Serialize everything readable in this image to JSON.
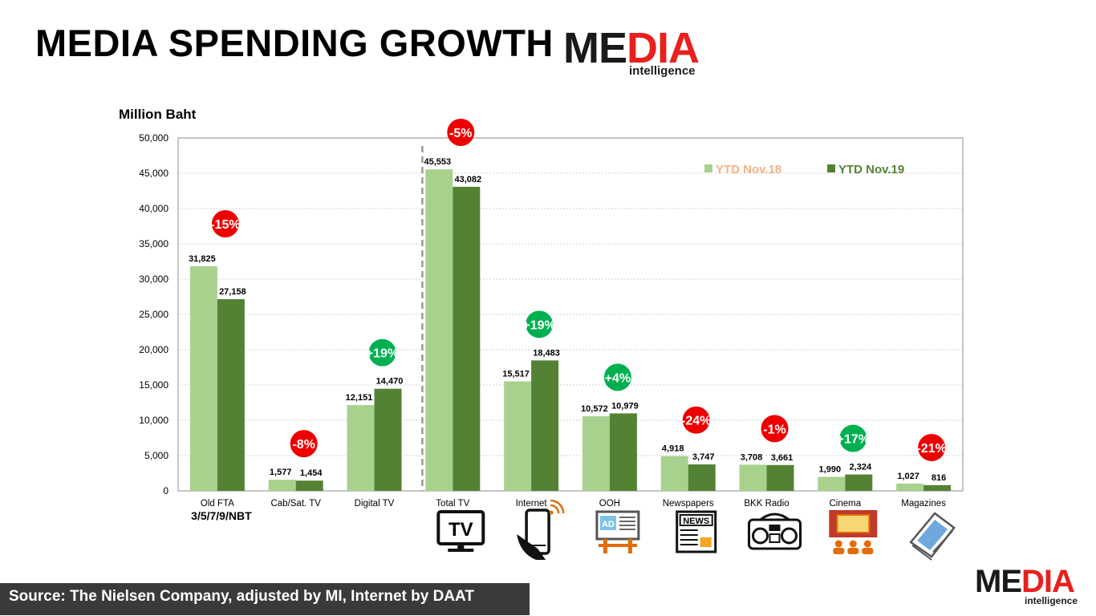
{
  "header": {
    "title": "MEDIA SPENDING GROWTH",
    "logo_word_dark": "ME",
    "logo_word_red": "DIA",
    "logo_sub": "intelligence"
  },
  "footer": {
    "source": "Source: The Nielsen Company, adjusted by MI, Internet by DAAT"
  },
  "colors": {
    "series_2018": "#a9d18e",
    "series_2019": "#548235",
    "legend_2018_text": "#f4b183",
    "legend_2019_text": "#548235",
    "badge_negative": "#ee0000",
    "badge_positive": "#00b050",
    "logo_red": "#e8201e"
  },
  "chart_data": {
    "type": "bar",
    "ylabel": "Million Baht",
    "ylim": [
      0,
      50000
    ],
    "yticks": [
      "0",
      "5,000",
      "10,000",
      "15,000",
      "20,000",
      "25,000",
      "30,000",
      "35,000",
      "40,000",
      "45,000",
      "50,000"
    ],
    "categories": [
      "Old FTA",
      "Cab/Sat. TV",
      "Digital TV",
      "Total TV",
      "Internet",
      "OOH",
      "Newspapers",
      "BKK Radio",
      "Cinema",
      "Magazines"
    ],
    "category_note": {
      "category": "Old FTA",
      "text": "3/5/7/9/NBT"
    },
    "legend_position": "top-right",
    "series": [
      {
        "name": "YTD Nov.18",
        "values": [
          31825,
          1577,
          12151,
          45553,
          15517,
          10572,
          4918,
          3708,
          1990,
          1027
        ],
        "labels": [
          "31,825",
          "1,577",
          "12,151",
          "45,553",
          "15,517",
          "10,572",
          "4,918",
          "3,708",
          "1,990",
          "1,027"
        ]
      },
      {
        "name": "YTD Nov.19",
        "values": [
          27158,
          1454,
          14470,
          43082,
          18483,
          10979,
          3747,
          3661,
          2324,
          816
        ],
        "labels": [
          "27,158",
          "1,454",
          "14,470",
          "43,082",
          "18,483",
          "10,979",
          "3,747",
          "3,661",
          "2,324",
          "816"
        ]
      }
    ],
    "growth": [
      "-15%",
      "-8%",
      "+19%",
      "-5%",
      "+19%",
      "+4%",
      "-24%",
      "-1%",
      "+17%",
      "-21%"
    ],
    "divider_after_category": "Digital TV",
    "gridlines": true
  },
  "icons": [
    {
      "category": "Total TV",
      "name": "tv-icon",
      "text": "TV"
    },
    {
      "category": "Internet",
      "name": "smartphone-icon"
    },
    {
      "category": "OOH",
      "name": "billboard-icon",
      "text": "AD"
    },
    {
      "category": "Newspapers",
      "name": "newspaper-icon",
      "text": "NEWS"
    },
    {
      "category": "BKK Radio",
      "name": "radio-icon"
    },
    {
      "category": "Cinema",
      "name": "cinema-icon"
    },
    {
      "category": "Magazines",
      "name": "magazine-icon"
    }
  ]
}
